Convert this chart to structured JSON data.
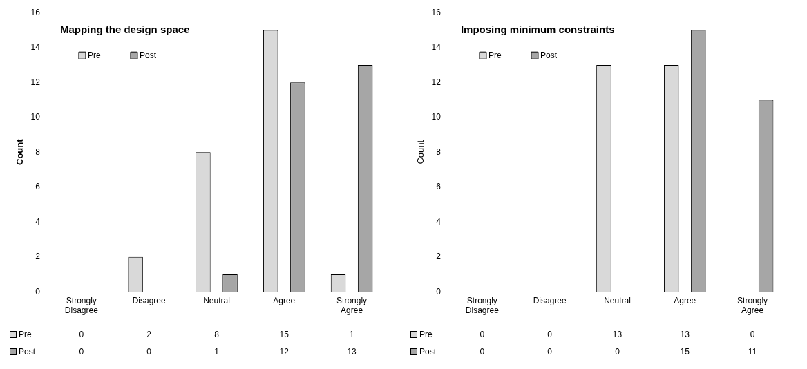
{
  "chart_data": [
    {
      "type": "bar",
      "title": "Mapping the design space",
      "ylabel": "Count",
      "categories": [
        "Strongly Disagree",
        "Disagree",
        "Neutral",
        "Agree",
        "Strongly Agree"
      ],
      "series": [
        {
          "name": "Pre",
          "color": "#d9d9d9",
          "values": [
            0,
            2,
            8,
            15,
            1
          ]
        },
        {
          "name": "Post",
          "color": "#a6a6a6",
          "values": [
            0,
            0,
            1,
            12,
            13
          ]
        }
      ],
      "ylim": [
        0,
        16
      ],
      "yticks": [
        0,
        2,
        4,
        6,
        8,
        10,
        12,
        14,
        16
      ],
      "grid": false,
      "legend": "top left",
      "data_labels": true
    },
    {
      "type": "bar",
      "title": "Imposing minimum constraints",
      "ylabel": "Count",
      "categories": [
        "Strongly Disagree",
        "Disagree",
        "Neutral",
        "Agree",
        "Strongly Agree"
      ],
      "series": [
        {
          "name": "Pre",
          "color": "#d9d9d9",
          "values": [
            0,
            0,
            13,
            13,
            0
          ]
        },
        {
          "name": "Post",
          "color": "#a6a6a6",
          "values": [
            0,
            0,
            0,
            15,
            11
          ]
        }
      ],
      "ylim": [
        0,
        16
      ],
      "yticks": [
        0,
        2,
        4,
        6,
        8,
        10,
        12,
        14,
        16
      ],
      "grid": false,
      "legend": "top left",
      "data_labels": true
    }
  ]
}
